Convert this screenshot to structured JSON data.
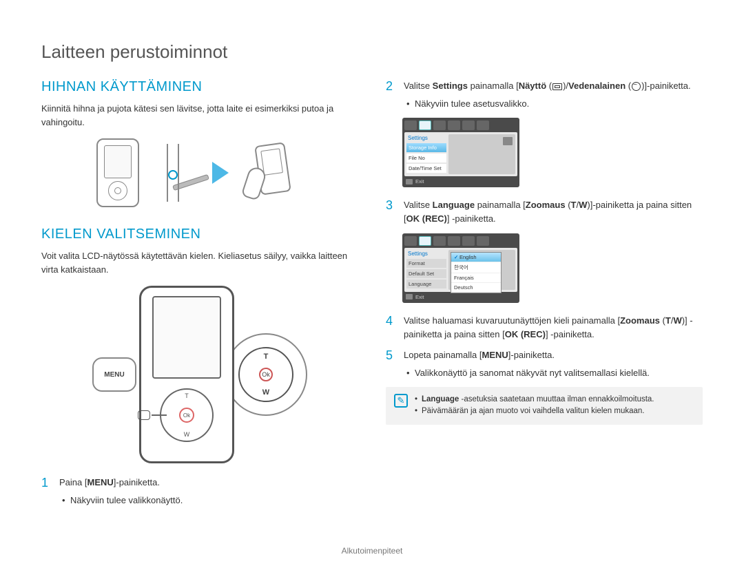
{
  "page": {
    "title": "Laitteen perustoiminnot",
    "footer": "Alkutoimenpiteet"
  },
  "left": {
    "section1_heading": "HIHNAN KÄYTTÄMINEN",
    "section1_text": "Kiinnitä hihna ja pujota kätesi sen lävitse, jotta laite ei esimerkiksi putoa ja vahingoitu.",
    "section2_heading": "KIELEN VALITSEMINEN",
    "section2_text": "Voit valita LCD-näytössä käytettävän kielen. Kieliasetus säilyy, vaikka laitteen virta katkaistaan.",
    "menu_callout": "MENU",
    "pad_labels": {
      "t": "T",
      "w": "W",
      "ok": "Ok"
    },
    "step1_num": "1",
    "step1_text_a": "Paina [",
    "step1_text_b": "MENU",
    "step1_text_c": "]-painiketta.",
    "step1_bullet": "Näkyviin tulee valikkonäyttö."
  },
  "right": {
    "step2_num": "2",
    "step2_a": "Valitse ",
    "step2_b": "Settings",
    "step2_c": " painamalla [",
    "step2_d": "Näyttö",
    "step2_e": " (",
    "step2_f": ")/",
    "step2_g": "Vedenalainen",
    "step2_h": " (",
    "step2_i": ")]-painiketta.",
    "step2_bullet": "Näkyviin tulee asetusvalikko.",
    "step3_num": "3",
    "step3_a": "Valitse ",
    "step3_b": "Language",
    "step3_c": " painamalla [",
    "step3_d": "Zoomaus",
    "step3_e": " (",
    "step3_f": "T",
    "step3_g": "/",
    "step3_h": "W",
    "step3_i": ")]-painiketta ja paina sitten [",
    "step3_j": "OK (REC)",
    "step3_k": "] -painiketta.",
    "step4_num": "4",
    "step4_a": "Valitse haluamasi kuvaruutunäyttöjen kieli painamalla [",
    "step4_b": "Zoomaus",
    "step4_c": " (",
    "step4_d": "T",
    "step4_e": "/",
    "step4_f": "W",
    "step4_g": ")] -painiketta ja paina sitten [",
    "step4_h": "OK (REC)",
    "step4_i": "] -painiketta.",
    "step5_num": "5",
    "step5_a": "Lopeta painamalla [",
    "step5_b": "MENU",
    "step5_c": "]-painiketta.",
    "step5_bullet": "Valikkonäyttö ja sanomat näkyvät nyt valitsemallasi kielellä.",
    "note1_a": "Language",
    "note1_b": " -asetuksia saatetaan muuttaa ilman ennakkoilmoitusta.",
    "note2": "Päivämäärän ja ajan muoto voi vaihdella valitun kielen mukaan."
  },
  "screen1": {
    "settings": "Settings",
    "items": [
      "Storage Info",
      "File No",
      "Date/Time Set"
    ],
    "selected_index": 0,
    "exit": "Exit",
    "colors": {
      "panel": "#e8e8e8",
      "frame": "#4a4a4a",
      "sel_grad_top": "#9ddcff",
      "sel_grad_bot": "#5bb8e6",
      "label": "#0077cc"
    }
  },
  "screen2": {
    "settings": "Settings",
    "side_items": [
      "Format",
      "Default Set",
      "Language"
    ],
    "languages": [
      "English",
      "한국어",
      "Français",
      "Deutsch"
    ],
    "selected_lang_index": 0,
    "exit": "Exit"
  },
  "colors": {
    "accent": "#0099cc",
    "arrow": "#4db8e6",
    "text": "#333333",
    "muted": "#777777"
  }
}
